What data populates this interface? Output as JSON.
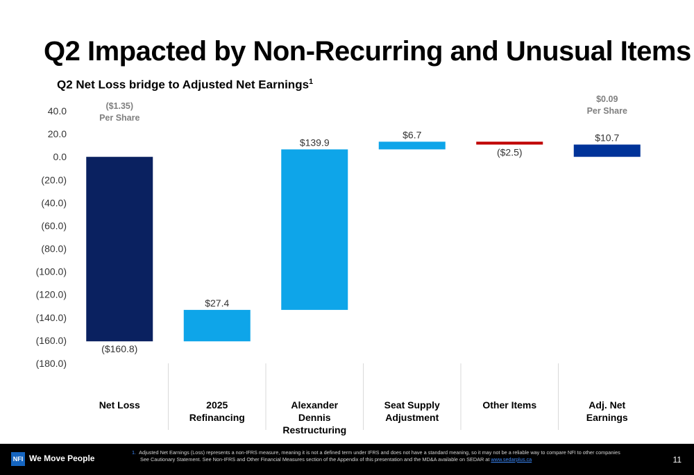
{
  "slide": {
    "title": "Q2 Impacted by Non-Recurring and Unusual Items",
    "subtitle": "Q2 Net Loss bridge to Adjusted Net Earnings",
    "subtitle_sup": "1",
    "page_number": "11"
  },
  "chart_data": {
    "type": "bar",
    "subtype": "waterfall",
    "categories": [
      "Net Loss",
      "2025 Refinancing",
      "Alexander Dennis Restructuring",
      "Seat Supply Adjustment",
      "Other Items",
      "Adj. Net Earnings"
    ],
    "category_lines": [
      [
        "Net Loss"
      ],
      [
        "2025",
        "Refinancing"
      ],
      [
        "Alexander",
        "Dennis",
        "Restructuring"
      ],
      [
        "Seat Supply",
        "Adjustment"
      ],
      [
        "Other Items"
      ],
      [
        "Adj. Net",
        "Earnings"
      ]
    ],
    "values": [
      -160.8,
      27.4,
      139.9,
      6.7,
      -2.5,
      10.7
    ],
    "data_labels": [
      "($160.8)",
      "$27.4",
      "$139.9",
      "$6.7",
      "($2.5)",
      "$10.7"
    ],
    "ylim": [
      -180,
      40
    ],
    "yticks": [
      40,
      20,
      0,
      -20,
      -40,
      -60,
      -80,
      -100,
      -120,
      -140,
      -160,
      -180
    ],
    "ytick_labels": [
      "40.0",
      "20.0",
      "0.0",
      "(20.0)",
      "(40.0)",
      "(60.0)",
      "(80.0)",
      "(100.0)",
      "(120.0)",
      "(140.0)",
      "(160.0)",
      "(180.0)"
    ],
    "per_share": [
      {
        "value": "($1.35)",
        "label": "Per Share"
      },
      {
        "value": "$0.09",
        "label": "Per Share"
      }
    ],
    "colors": {
      "net_loss": "#0a2160",
      "increase": "#0ea5e9",
      "decrease": "#c00000",
      "total": "#003399",
      "axis_text": "#333333",
      "per_share_text": "#7f7f7f"
    }
  },
  "footer": {
    "logo_text": "NFI",
    "tagline": "We Move People",
    "footnote_number": "1.",
    "footnote_line1": "Adjusted Net Earnings (Loss) represents a non-IFRS measure, meaning it is not a defined term under IFRS and does not have a standard meaning, so it may not be a reliable way to compare NFI to other companies",
    "footnote_line2": "See Cautionary Statement. See Non-IFRS and Other Financial Measures section of the Appendix of this presentation and the MD&A available on SEDAR at",
    "footnote_link": "www.sedarplus.ca"
  }
}
